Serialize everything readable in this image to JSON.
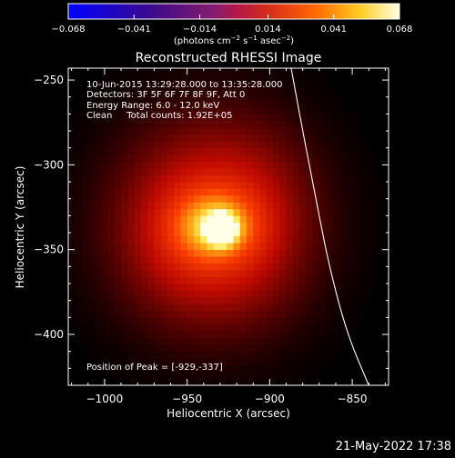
{
  "colorbar": {
    "tick_values": [
      -0.068,
      -0.041,
      -0.014,
      0.014,
      0.041,
      0.068
    ],
    "tick_labels": [
      "−0.068",
      "−0.041",
      "−0.014",
      "0.014",
      "0.041",
      "0.068"
    ],
    "units_main": "(photons cm",
    "units_sup1": "−2",
    "units_mid": " s",
    "units_sup2": "−1",
    "units_mid2": " asec",
    "units_sup3": "−2",
    "units_end": ")"
  },
  "chart_data": {
    "type": "heatmap",
    "title": "Reconstructed RHESSI Image",
    "xlabel": "Heliocentric X (arcsec)",
    "ylabel": "Heliocentric Y (arcsec)",
    "xlim": [
      -1022,
      -828
    ],
    "ylim": [
      -430,
      -243
    ],
    "x_ticks": [
      -1000,
      -950,
      -900,
      -850
    ],
    "x_tick_labels": [
      "−1000",
      "−950",
      "−900",
      "−850"
    ],
    "y_ticks": [
      -250,
      -300,
      -350,
      -400
    ],
    "y_tick_labels": [
      "−250",
      "−300",
      "−350",
      "−400"
    ],
    "clim": [
      -0.068,
      0.068
    ],
    "colormap": "red-temperature",
    "peak": [
      -929,
      -337
    ],
    "sources": [
      {
        "center": [
          -929,
          -338
        ],
        "sigma_x": 6,
        "sigma_y": 6,
        "amp": 0.04
      },
      {
        "center": [
          -933,
          -336
        ],
        "sigma_x": 16,
        "sigma_y": 13,
        "amp": 0.024
      },
      {
        "center": [
          -935,
          -333
        ],
        "sigma_x": 38,
        "sigma_y": 40,
        "amp": 0.03
      },
      {
        "center": [
          -948,
          -345
        ],
        "sigma_x": 28,
        "sigma_y": 30,
        "amp": 0.01
      },
      {
        "center": [
          -905,
          -335
        ],
        "sigma_x": 22,
        "sigma_y": 36,
        "amp": 0.006
      }
    ],
    "annotations": [
      "10-Jun-2015 13:29:28.000 to 13:35:28.000",
      "Detectors: 3F 5F 6F 7F 8F 9F, Att 0",
      "Energy Range: 6.0 - 12.0 keV",
      "Clean     Total counts: 1.92E+05"
    ],
    "peak_label": "Position of Peak = [-929,-337]",
    "limb_curve": [
      [
        -887,
        -243
      ],
      [
        -880,
        -280
      ],
      [
        -872,
        -320
      ],
      [
        -864,
        -360
      ],
      [
        -853,
        -400
      ],
      [
        -840,
        -430
      ]
    ]
  },
  "timestamp": "21-May-2022 17:38"
}
